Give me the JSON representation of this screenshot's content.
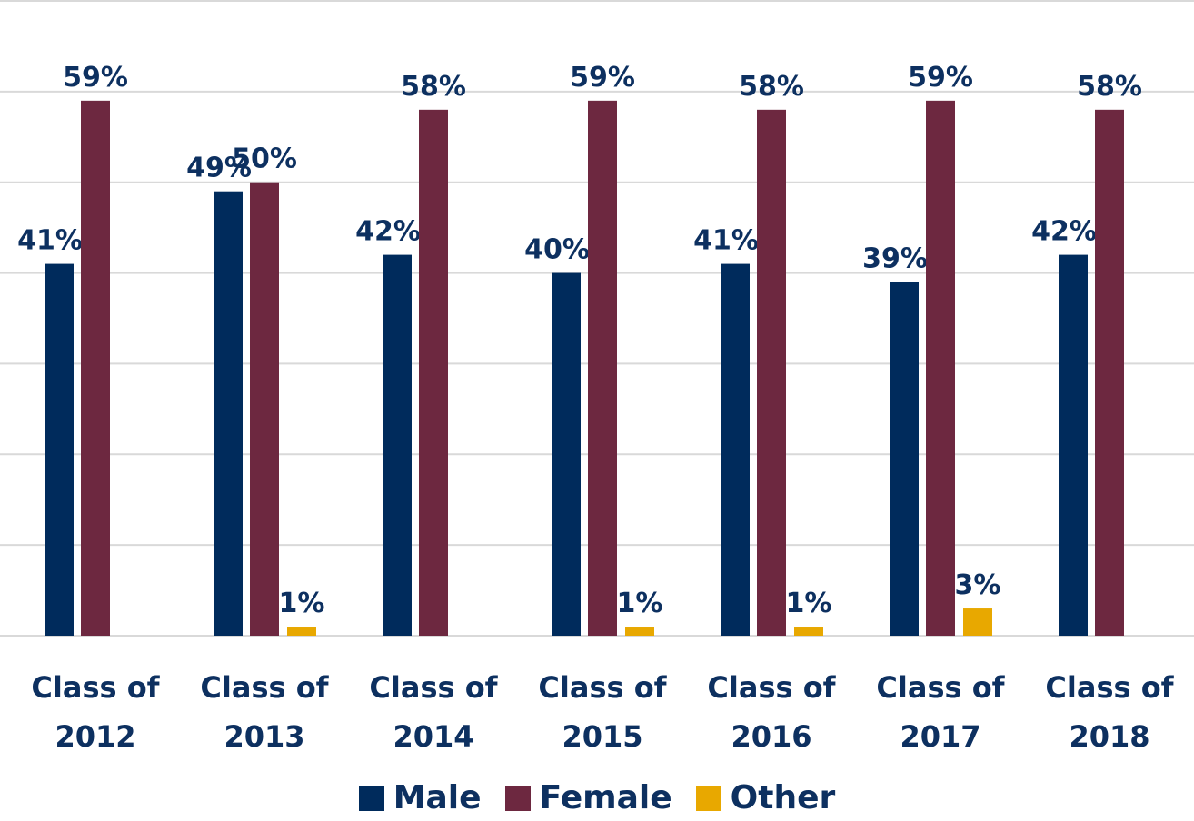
{
  "chart_data": {
    "type": "bar",
    "categories": [
      "Class of 2012",
      "Class of 2013",
      "Class of 2014",
      "Class of 2015",
      "Class of 2016",
      "Class of 2017",
      "Class of 2018"
    ],
    "series": [
      {
        "name": "Male",
        "color": "#002b5c",
        "values": [
          41,
          49,
          42,
          40,
          41,
          39,
          42
        ],
        "value_labels": [
          "41%",
          "49%",
          "42%",
          "40%",
          "41%",
          "39%",
          "42%"
        ]
      },
      {
        "name": "Female",
        "color": "#6d2840",
        "values": [
          59,
          50,
          58,
          59,
          58,
          59,
          58
        ],
        "value_labels": [
          "59%",
          "50%",
          "58%",
          "59%",
          "58%",
          "59%",
          "58%"
        ]
      },
      {
        "name": "Other",
        "color": "#e8a800",
        "values": [
          null,
          1,
          null,
          1,
          1,
          3,
          null
        ],
        "value_labels": [
          null,
          "1%",
          null,
          "1%",
          "1%",
          "3%",
          null
        ]
      }
    ],
    "ylim": [
      0,
      70
    ],
    "yticks": [
      0,
      10,
      20,
      30,
      40,
      50,
      60,
      70
    ],
    "grid": true,
    "legend": "bottom"
  }
}
